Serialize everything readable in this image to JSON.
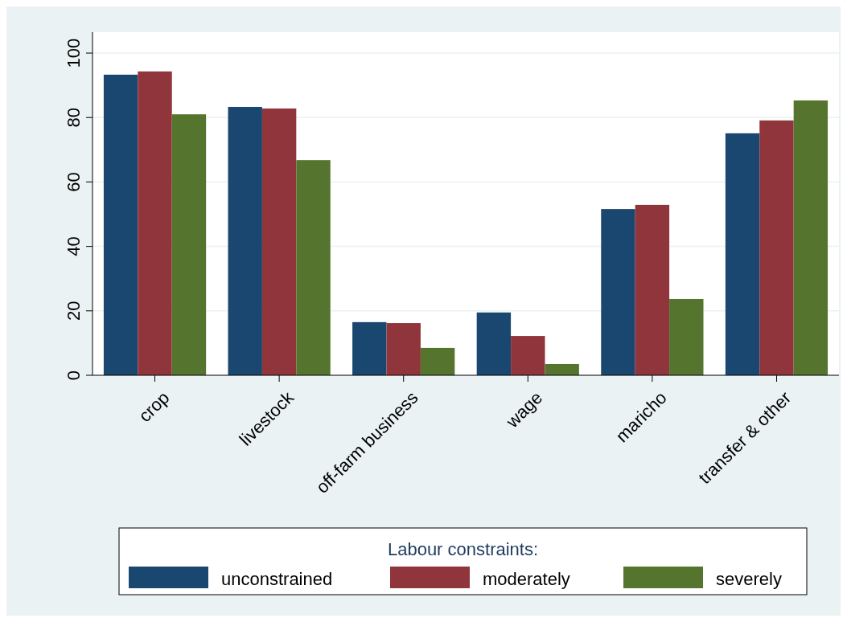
{
  "chart_data": {
    "type": "bar",
    "categories": [
      "crop",
      "livestock",
      "off-farm business",
      "wage",
      "maricho",
      "transfer & other"
    ],
    "series": [
      {
        "name": "unconstrained",
        "color": "#1a476f",
        "values": [
          93.3,
          83.3,
          16.5,
          19.5,
          51.6,
          75.1
        ]
      },
      {
        "name": "moderately",
        "color": "#90353b",
        "values": [
          94.3,
          82.8,
          16.2,
          12.2,
          52.9,
          79.1
        ]
      },
      {
        "name": "severely",
        "color": "#55752f",
        "values": [
          81.0,
          66.8,
          8.5,
          3.5,
          23.7,
          85.3
        ]
      }
    ],
    "ylim": [
      0,
      106.5
    ],
    "yticks": [
      0,
      20,
      40,
      60,
      80,
      100
    ],
    "grid": "y",
    "legend": "bottom",
    "legend_title": "Labour constraints:"
  }
}
